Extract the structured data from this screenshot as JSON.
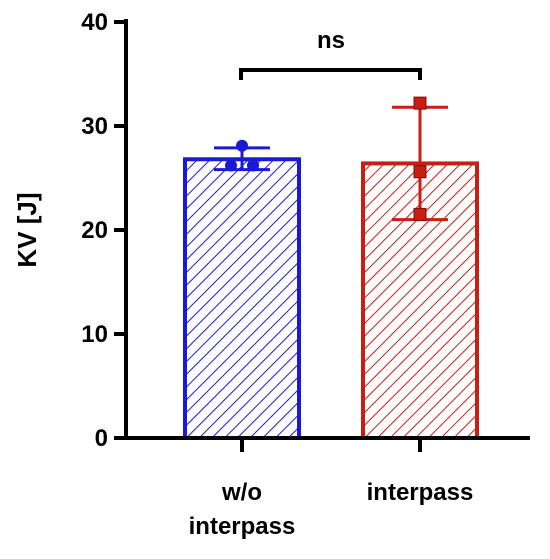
{
  "chart_data": {
    "type": "bar",
    "categories": [
      "w/o interpass",
      "interpass"
    ],
    "category_lines": [
      [
        "w/o",
        "interpass"
      ],
      [
        "interpass"
      ]
    ],
    "values": [
      26.8,
      26.4
    ],
    "error": [
      [
        25.8,
        27.9
      ],
      [
        21.0,
        31.8
      ]
    ],
    "points": [
      [
        28.1,
        26.2,
        26.2
      ],
      [
        32.2,
        25.6,
        21.5
      ]
    ],
    "point_markers": [
      "circle",
      "square"
    ],
    "colors": [
      "#1a1ad6",
      "#c81e14"
    ],
    "hatch": "diagonal",
    "ylabel": "KV [J]",
    "ylim": [
      0,
      40
    ],
    "yticks": [
      0,
      10,
      20,
      30,
      40
    ],
    "significance": "ns",
    "grid": false,
    "legend": "none"
  }
}
